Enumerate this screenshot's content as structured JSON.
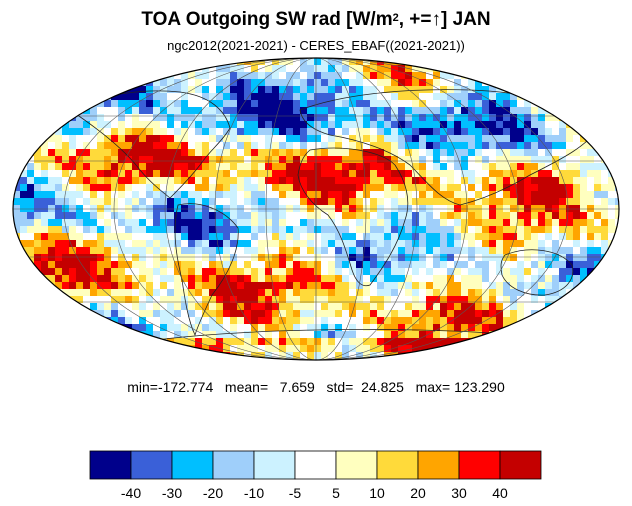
{
  "title": {
    "main": "TOA Outgoing SW rad [W/m",
    "sup": "2",
    "rest": ", +=↑] JAN"
  },
  "subtitle": "ngc2012(2021-2021) - CERES_EBAF((2021-2021))",
  "stats": "min=-172.774   mean=   7.659   std=  24.825   max= 123.290",
  "colorbar": {
    "colors": [
      "#00008B",
      "#3A60D8",
      "#00BFFF",
      "#9FCFFA",
      "#CCF2FF",
      "#FFFFFF",
      "#FFFFBF",
      "#FFDA3A",
      "#FFA500",
      "#FF0000",
      "#C40000"
    ],
    "tick_labels": [
      "-40",
      "-30",
      "-20",
      "-10",
      "-5",
      "5",
      "10",
      "20",
      "30",
      "40"
    ]
  },
  "map": {
    "projection": "Mollweide",
    "graticule": "30-degree"
  }
}
